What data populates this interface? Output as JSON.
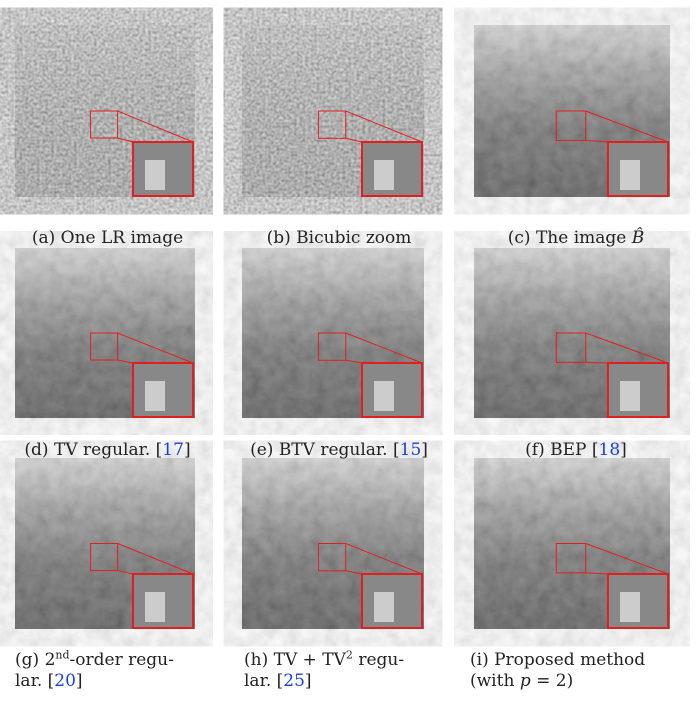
{
  "figure": {
    "panels": [
      {
        "label": "(a)",
        "parts": [
          {
            "text": "One LR image"
          }
        ]
      },
      {
        "label": "(b)",
        "parts": [
          {
            "text": "Bicubic zoom"
          }
        ]
      },
      {
        "label": "(c)",
        "parts": [
          {
            "text": "The image "
          },
          {
            "text": "B̂",
            "kind": "math"
          }
        ]
      },
      {
        "label": "(d)",
        "parts": [
          {
            "text": "TV regular. ["
          },
          {
            "text": "17",
            "kind": "cite"
          },
          {
            "text": "]"
          }
        ]
      },
      {
        "label": "(e)",
        "parts": [
          {
            "text": "BTV regular. ["
          },
          {
            "text": "15",
            "kind": "cite"
          },
          {
            "text": "]"
          }
        ]
      },
      {
        "label": "(f)",
        "parts": [
          {
            "text": "BEP ["
          },
          {
            "text": "18",
            "kind": "cite"
          },
          {
            "text": "]"
          }
        ]
      },
      {
        "label": "(g)",
        "parts": [
          {
            "text": "2"
          },
          {
            "text": "nd",
            "kind": "sup"
          },
          {
            "text": "-order regu-"
          },
          {
            "text": "lar. [",
            "kind": "break"
          },
          {
            "text": "20",
            "kind": "cite"
          },
          {
            "text": "]"
          }
        ]
      },
      {
        "label": "(h)",
        "parts": [
          {
            "text": "TV + TV"
          },
          {
            "text": "2",
            "kind": "sup"
          },
          {
            "text": " regu-"
          },
          {
            "text": "lar. [",
            "kind": "break"
          },
          {
            "text": "25",
            "kind": "cite"
          },
          {
            "text": "]"
          }
        ]
      },
      {
        "label": "(i)",
        "parts": [
          {
            "text": "Proposed method"
          },
          {
            "text": "(with ",
            "kind": "break"
          },
          {
            "text": "p",
            "kind": "math"
          },
          {
            "text": " = 2)"
          }
        ]
      }
    ]
  }
}
